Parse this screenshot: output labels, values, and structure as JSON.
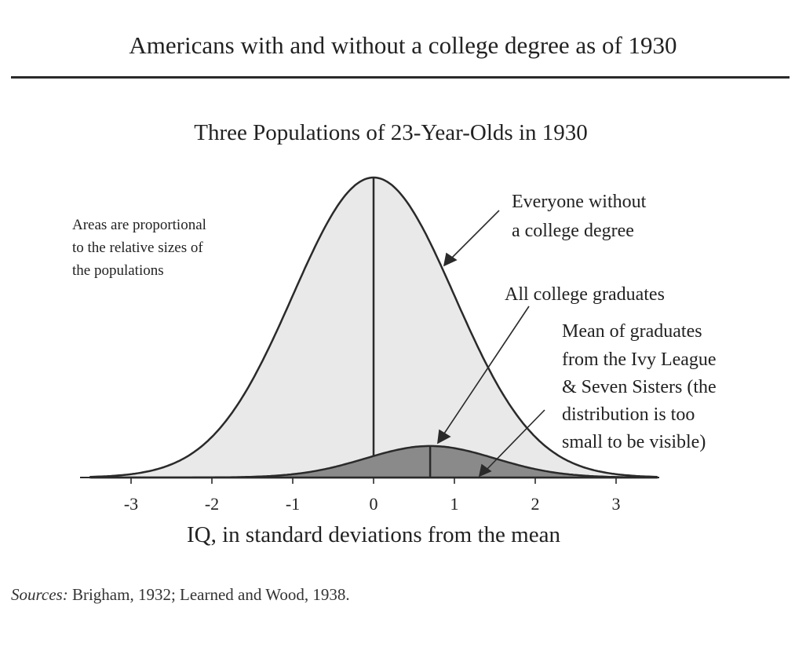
{
  "header": {
    "title": "Americans with and without a college degree as of 1930"
  },
  "chart_data": {
    "type": "area",
    "title": "Three Populations of 23-Year-Olds in 1930",
    "xlabel": "IQ, in standard deviations from the mean",
    "ylabel": "",
    "xlim": [
      -3.5,
      3.5
    ],
    "x_ticks": [
      -3,
      -2,
      -1,
      0,
      1,
      2,
      3
    ],
    "x_tick_labels": [
      "-3",
      "-2",
      "-1",
      "0",
      "1",
      "2",
      "3"
    ],
    "grid": false,
    "series": [
      {
        "name": "Everyone without a college degree",
        "distribution": "normal",
        "mean": 0,
        "sd": 1,
        "relative_peak": 1.0,
        "fill": "#e9e9e9",
        "mean_line": true
      },
      {
        "name": "All college graduates",
        "distribution": "normal",
        "mean": 0.7,
        "sd": 0.8,
        "relative_peak": 0.105,
        "fill": "#8a8a8a",
        "mean_line": true
      }
    ],
    "annotations": {
      "areas_note": [
        "Areas are proportional",
        "to the relative sizes of",
        "the populations"
      ],
      "everyone": [
        "Everyone without",
        "a college degree"
      ],
      "graduates": [
        "All college graduates"
      ],
      "ivy": [
        "Mean of graduates",
        "from the Ivy League",
        "& Seven Sisters (the",
        "distribution is too",
        "small to be visible)"
      ]
    }
  },
  "sources": {
    "label": "Sources:",
    "text": " Brigham, 1932; Learned and Wood, 1938."
  }
}
